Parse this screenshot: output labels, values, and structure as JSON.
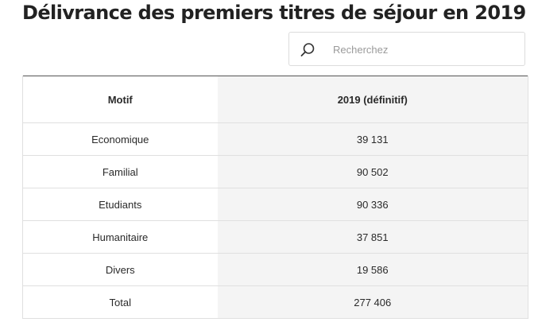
{
  "page": {
    "title": "Délivrance des premiers titres de séjour en 2019"
  },
  "search": {
    "placeholder": "Recherchez",
    "icon": "search-icon"
  },
  "table": {
    "headers": [
      "Motif",
      "2019 (définitif)"
    ],
    "rows": [
      [
        "Economique",
        "39 131"
      ],
      [
        "Familial",
        "90 502"
      ],
      [
        "Etudiants",
        "90 336"
      ],
      [
        "Humanitaire",
        "37 851"
      ],
      [
        "Divers",
        "19 586"
      ],
      [
        "Total",
        "277 406"
      ]
    ]
  }
}
